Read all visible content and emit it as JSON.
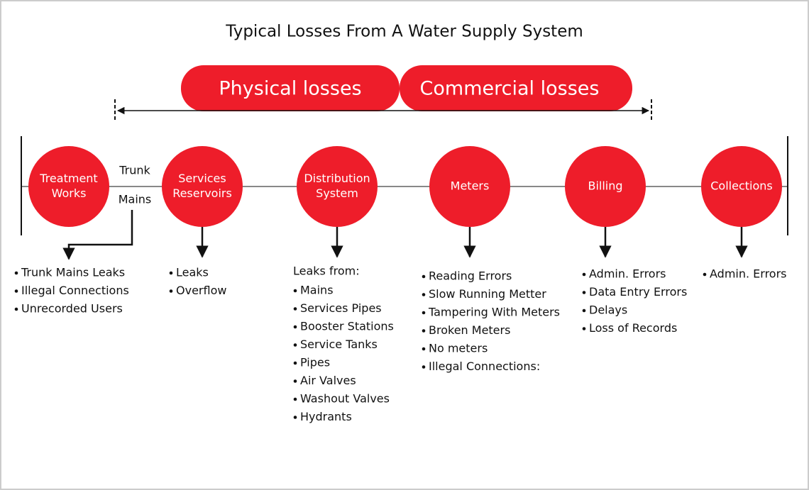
{
  "title": "Typical Losses From A Water Supply System",
  "banners": [
    "Physical losses",
    "Commercial losses"
  ],
  "connector_label": [
    "Trunk",
    "Mains"
  ],
  "nodes": [
    {
      "label": [
        "Treatment",
        "Works"
      ],
      "losses": [
        "Trunk Mains Leaks",
        "Illegal Connections",
        "Unrecorded Users"
      ]
    },
    {
      "label": [
        "Services",
        "Reservoirs"
      ],
      "losses": [
        "Leaks",
        "Overflow"
      ]
    },
    {
      "label": [
        "Distribution",
        "System"
      ],
      "losses_heading": "Leaks from:",
      "losses": [
        "Mains",
        "Services Pipes",
        "Booster Stations",
        "Service Tanks",
        "Pipes",
        "Air Valves",
        "Washout Valves",
        "Hydrants"
      ]
    },
    {
      "label": [
        "Meters"
      ],
      "losses": [
        "Reading Errors",
        "Slow Running Metter",
        "Tampering With Meters",
        "Broken Meters",
        "No meters",
        "Illegal Connections:"
      ]
    },
    {
      "label": [
        "Billing"
      ],
      "losses": [
        "Admin. Errors",
        "Data Entry Errors",
        "Delays",
        "Loss of Records"
      ]
    },
    {
      "label": [
        "Collections"
      ],
      "losses": [
        "Admin. Errors"
      ]
    }
  ]
}
